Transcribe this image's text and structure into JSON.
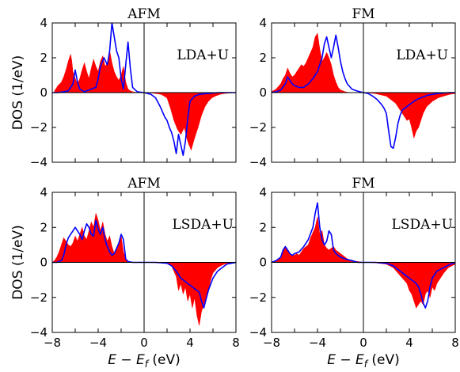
{
  "chart_data": [
    {
      "type": "area",
      "title": "AFM",
      "annotation": "LDA+U",
      "ylabel": "DOS (1/eV)",
      "xlabel": "",
      "xlim": [
        -8,
        8
      ],
      "ylim": [
        -4,
        4
      ],
      "xticks": [],
      "yticks": [
        -4,
        -2,
        0,
        2,
        4
      ],
      "ytick_labels": [
        "−4",
        "−2",
        "0",
        "2",
        "4"
      ],
      "series": [
        {
          "kind": "filled",
          "color": "#ff0000",
          "x": [
            -7.8,
            -7.5,
            -7.2,
            -7.0,
            -6.8,
            -6.6,
            -6.4,
            -6.3,
            -6.2,
            -6.0,
            -5.8,
            -5.6,
            -5.4,
            -5.2,
            -5.0,
            -4.8,
            -4.6,
            -4.4,
            -4.2,
            -4.0,
            -3.8,
            -3.6,
            -3.4,
            -3.2,
            -3.0,
            -2.8,
            -2.6,
            -2.4,
            -2.2,
            -2.0,
            -1.8,
            -1.6,
            -1.4,
            -1.2,
            -1.0,
            -0.6,
            0.0,
            0.6,
            1.0,
            1.5,
            2.0,
            2.3,
            2.6,
            2.9,
            3.2,
            3.5,
            3.8,
            4.1,
            4.4,
            4.7,
            5.0,
            5.3,
            5.6,
            5.9,
            6.2,
            6.6,
            7.0,
            7.5,
            7.8
          ],
          "y": [
            0.1,
            0.4,
            0.6,
            0.9,
            1.3,
            1.8,
            2.2,
            1.8,
            1.2,
            0.8,
            0.5,
            0.8,
            1.3,
            1.7,
            1.2,
            0.8,
            1.4,
            1.9,
            1.5,
            1.2,
            1.8,
            2.1,
            1.5,
            1.7,
            2.4,
            1.7,
            1.2,
            0.9,
            0.7,
            1.0,
            1.5,
            0.6,
            0.2,
            0.1,
            0.05,
            0.0,
            0.0,
            -0.02,
            -0.05,
            -0.1,
            -0.3,
            -0.9,
            -1.6,
            -2.1,
            -2.4,
            -2.0,
            -2.8,
            -3.3,
            -2.6,
            -2.0,
            -1.3,
            -0.8,
            -0.5,
            -0.3,
            -0.2,
            -0.1,
            -0.05,
            -0.02,
            0.0
          ]
        },
        {
          "kind": "line",
          "color": "#0000ff",
          "x": [
            -8.0,
            -7.5,
            -7.0,
            -6.6,
            -6.2,
            -6.0,
            -5.8,
            -5.6,
            -5.2,
            -5.0,
            -4.8,
            -4.6,
            -4.2,
            -4.0,
            -3.8,
            -3.5,
            -3.2,
            -3.0,
            -2.8,
            -2.6,
            -2.4,
            -2.2,
            -2.0,
            -1.8,
            -1.6,
            -1.4,
            -1.2,
            -1.0,
            -0.6,
            0.0,
            0.6,
            1.0,
            1.4,
            1.8,
            2.0,
            2.2,
            2.4,
            2.6,
            2.8,
            3.0,
            3.2,
            3.4,
            3.6,
            3.8,
            4.0,
            4.4,
            4.8,
            5.5,
            6.5,
            7.5,
            8.0
          ],
          "y": [
            0.0,
            0.0,
            0.05,
            0.1,
            0.5,
            1.3,
            0.6,
            0.2,
            0.05,
            0.1,
            0.15,
            0.2,
            0.3,
            0.8,
            1.5,
            2.0,
            1.6,
            2.4,
            4.0,
            3.2,
            2.4,
            2.0,
            0.8,
            0.2,
            1.6,
            2.9,
            1.4,
            0.3,
            0.05,
            0.0,
            -0.1,
            -0.3,
            -0.8,
            -1.4,
            -1.6,
            -2.0,
            -2.3,
            -2.8,
            -3.5,
            -2.4,
            -3.0,
            -3.6,
            -2.8,
            -1.5,
            -0.5,
            -0.2,
            -0.1,
            -0.05,
            0.0,
            0.0,
            0.0
          ]
        }
      ]
    },
    {
      "type": "area",
      "title": "FM",
      "annotation": "LDA+U",
      "ylabel": "",
      "xlabel": "",
      "xlim": [
        -8,
        8
      ],
      "ylim": [
        -4,
        4
      ],
      "xticks": [],
      "yticks": [
        -4,
        -2,
        0,
        2,
        4
      ],
      "ytick_labels": [
        "−4",
        "−2",
        "0",
        "2",
        "4"
      ],
      "series": [
        {
          "kind": "filled",
          "color": "#ff0000",
          "x": [
            -8.0,
            -7.6,
            -7.2,
            -7.0,
            -6.8,
            -6.6,
            -6.4,
            -6.2,
            -6.0,
            -5.8,
            -5.6,
            -5.4,
            -5.2,
            -5.0,
            -4.8,
            -4.6,
            -4.4,
            -4.2,
            -4.0,
            -3.8,
            -3.6,
            -3.4,
            -3.2,
            -3.0,
            -2.8,
            -2.6,
            -2.4,
            -2.2,
            -2.0,
            -1.8,
            -1.6,
            -1.4,
            -1.0,
            -0.6,
            0.0,
            1.0,
            2.0,
            2.4,
            2.8,
            3.0,
            3.2,
            3.4,
            3.6,
            3.8,
            4.0,
            4.2,
            4.4,
            4.6,
            4.8,
            5.0,
            5.2,
            5.5,
            6.0,
            6.5,
            7.0,
            7.5,
            8.0
          ],
          "y": [
            0.05,
            0.2,
            0.5,
            0.8,
            1.0,
            1.4,
            1.1,
            0.9,
            1.0,
            1.2,
            1.4,
            1.6,
            1.5,
            1.7,
            2.0,
            2.3,
            2.6,
            3.2,
            3.4,
            2.5,
            1.8,
            2.0,
            2.3,
            2.0,
            1.6,
            1.0,
            0.6,
            0.3,
            0.15,
            0.1,
            0.05,
            0.02,
            0.0,
            0.0,
            0.0,
            -0.05,
            -0.2,
            -0.4,
            -0.6,
            -0.8,
            -1.0,
            -1.2,
            -1.4,
            -1.6,
            -1.5,
            -2.0,
            -2.6,
            -2.2,
            -2.0,
            -1.6,
            -1.2,
            -0.8,
            -0.5,
            -0.3,
            -0.2,
            -0.1,
            -0.05
          ]
        },
        {
          "kind": "line",
          "color": "#0000ff",
          "x": [
            -8.0,
            -7.6,
            -7.2,
            -6.8,
            -6.6,
            -6.4,
            -6.2,
            -6.0,
            -5.6,
            -5.2,
            -4.8,
            -4.4,
            -4.0,
            -3.8,
            -3.6,
            -3.4,
            -3.2,
            -3.0,
            -2.8,
            -2.6,
            -2.4,
            -2.2,
            -2.0,
            -1.8,
            -1.6,
            -1.4,
            -1.0,
            -0.6,
            0.0,
            0.4,
            0.8,
            1.2,
            1.6,
            1.8,
            2.0,
            2.2,
            2.4,
            2.6,
            2.8,
            3.0,
            3.2,
            3.4,
            3.6,
            3.8,
            4.0,
            4.4,
            4.8,
            5.2,
            5.6,
            6.0,
            6.5,
            7.0,
            7.5,
            8.0
          ],
          "y": [
            0.0,
            0.05,
            0.15,
            0.5,
            0.9,
            0.7,
            0.5,
            0.4,
            0.3,
            0.3,
            0.5,
            0.8,
            1.2,
            1.6,
            2.0,
            2.8,
            3.2,
            2.6,
            2.0,
            2.6,
            3.3,
            2.6,
            1.8,
            1.2,
            0.8,
            0.5,
            0.2,
            0.1,
            0.0,
            -0.05,
            -0.2,
            -0.4,
            -0.7,
            -0.9,
            -1.2,
            -2.2,
            -3.1,
            -3.2,
            -2.6,
            -1.8,
            -1.3,
            -1.0,
            -0.9,
            -0.8,
            -0.7,
            -0.5,
            -0.35,
            -0.25,
            -0.15,
            -0.1,
            -0.05,
            -0.02,
            0.0,
            0.0
          ]
        }
      ]
    },
    {
      "type": "area",
      "title": "AFM",
      "annotation": "LSDA+U",
      "ylabel": "DOS (1/eV)",
      "xlabel": "E − E_f (eV)",
      "xlim": [
        -8,
        8
      ],
      "ylim": [
        -4,
        4
      ],
      "xticks": [
        -8,
        -4,
        0,
        4,
        8
      ],
      "xtick_labels": [
        "−8",
        "−4",
        "0",
        "4",
        "8"
      ],
      "yticks": [
        -4,
        -2,
        0,
        2,
        4
      ],
      "ytick_labels": [
        "−4",
        "−2",
        "0",
        "2",
        "4"
      ],
      "series": [
        {
          "kind": "filled",
          "color": "#ff0000",
          "x": [
            -8.0,
            -7.8,
            -7.6,
            -7.4,
            -7.2,
            -7.0,
            -6.8,
            -6.6,
            -6.4,
            -6.2,
            -6.0,
            -5.8,
            -5.6,
            -5.4,
            -5.2,
            -5.0,
            -4.8,
            -4.6,
            -4.4,
            -4.2,
            -4.0,
            -3.8,
            -3.6,
            -3.4,
            -3.2,
            -3.0,
            -2.8,
            -2.6,
            -2.4,
            -2.2,
            -2.0,
            -1.8,
            -1.6,
            -1.4,
            -1.0,
            -0.4,
            0.0,
            1.0,
            2.0,
            2.4,
            2.8,
            3.0,
            3.2,
            3.4,
            3.6,
            3.8,
            4.0,
            4.2,
            4.4,
            4.6,
            4.8,
            5.0,
            5.2,
            5.4,
            5.6,
            5.8,
            6.0,
            6.4,
            6.8,
            7.2,
            8.0
          ],
          "y": [
            0.0,
            0.1,
            0.3,
            0.6,
            1.0,
            1.4,
            1.2,
            1.0,
            0.9,
            1.1,
            1.5,
            1.2,
            1.6,
            2.0,
            1.5,
            1.3,
            1.8,
            2.3,
            2.0,
            2.8,
            2.4,
            1.8,
            2.3,
            1.6,
            1.2,
            1.5,
            0.9,
            0.5,
            0.7,
            1.0,
            1.5,
            0.6,
            0.2,
            0.05,
            0.0,
            0.0,
            0.0,
            -0.02,
            -0.05,
            -0.2,
            -0.8,
            -1.6,
            -1.2,
            -1.8,
            -1.4,
            -2.2,
            -1.8,
            -2.6,
            -2.0,
            -3.0,
            -3.6,
            -2.8,
            -2.4,
            -2.0,
            -1.6,
            -1.0,
            -0.6,
            -0.3,
            -0.15,
            -0.05,
            0.0
          ]
        },
        {
          "kind": "line",
          "color": "#0000ff",
          "x": [
            -8.0,
            -7.6,
            -7.2,
            -7.0,
            -6.8,
            -6.6,
            -6.4,
            -6.2,
            -6.0,
            -5.8,
            -5.6,
            -5.4,
            -5.2,
            -5.0,
            -4.8,
            -4.6,
            -4.4,
            -4.2,
            -4.0,
            -3.8,
            -3.6,
            -3.4,
            -3.2,
            -3.0,
            -2.8,
            -2.6,
            -2.4,
            -2.2,
            -2.0,
            -1.8,
            -1.6,
            -1.4,
            -1.0,
            -0.4,
            0.0,
            1.0,
            2.0,
            2.4,
            2.8,
            3.0,
            3.2,
            3.4,
            3.6,
            3.8,
            4.0,
            4.4,
            4.8,
            5.0,
            5.2,
            5.6,
            6.0,
            6.4,
            6.8,
            7.2,
            8.0
          ],
          "y": [
            0.0,
            0.0,
            0.1,
            0.4,
            1.0,
            1.4,
            1.6,
            1.8,
            2.0,
            1.8,
            1.6,
            1.3,
            1.8,
            2.2,
            2.0,
            1.6,
            1.5,
            2.4,
            1.9,
            1.6,
            2.0,
            1.3,
            0.9,
            0.6,
            0.4,
            0.5,
            0.8,
            1.1,
            1.6,
            1.3,
            0.2,
            0.05,
            0.0,
            0.0,
            0.0,
            0.0,
            -0.05,
            -0.2,
            -0.5,
            -0.7,
            -0.9,
            -1.0,
            -1.1,
            -1.2,
            -1.3,
            -1.5,
            -1.7,
            -2.2,
            -2.6,
            -1.6,
            -0.9,
            -0.5,
            -0.3,
            -0.1,
            0.0
          ]
        }
      ]
    },
    {
      "type": "area",
      "title": "FM",
      "annotation": "LSDA+U",
      "ylabel": "",
      "xlabel": "E − E_f (eV)",
      "xlim": [
        -8,
        8
      ],
      "ylim": [
        -4,
        4
      ],
      "xticks": [
        -8,
        -4,
        0,
        4,
        8
      ],
      "xtick_labels": [
        "−8",
        "−4",
        "0",
        "4",
        "8"
      ],
      "yticks": [
        -4,
        -2,
        0,
        2,
        4
      ],
      "ytick_labels": [
        "−4",
        "−2",
        "0",
        "2",
        "4"
      ],
      "series": [
        {
          "kind": "filled",
          "color": "#ff0000",
          "x": [
            -8.0,
            -7.6,
            -7.2,
            -7.0,
            -6.8,
            -6.6,
            -6.4,
            -6.2,
            -6.0,
            -5.8,
            -5.6,
            -5.4,
            -5.2,
            -5.0,
            -4.8,
            -4.6,
            -4.4,
            -4.2,
            -4.0,
            -3.8,
            -3.6,
            -3.4,
            -3.2,
            -3.0,
            -2.8,
            -2.6,
            -2.4,
            -2.2,
            -2.0,
            -1.8,
            -1.6,
            -1.4,
            -1.0,
            -0.5,
            0.0,
            1.0,
            2.0,
            2.6,
            3.0,
            3.4,
            3.8,
            4.0,
            4.2,
            4.4,
            4.6,
            4.8,
            5.0,
            5.2,
            5.4,
            5.6,
            5.8,
            6.0,
            6.2,
            6.4,
            6.6,
            6.8,
            7.0,
            7.4,
            8.0
          ],
          "y": [
            0.0,
            0.1,
            0.3,
            0.6,
            0.9,
            0.7,
            0.5,
            0.4,
            0.4,
            0.5,
            0.4,
            0.6,
            0.8,
            0.9,
            1.0,
            1.4,
            1.7,
            2.0,
            2.6,
            1.6,
            1.8,
            1.0,
            0.8,
            0.7,
            0.8,
            0.9,
            0.7,
            0.6,
            0.5,
            0.4,
            0.3,
            0.2,
            0.1,
            0.05,
            0.0,
            -0.02,
            -0.1,
            -0.3,
            -0.6,
            -0.9,
            -1.2,
            -1.6,
            -1.8,
            -2.2,
            -2.6,
            -2.4,
            -2.2,
            -2.4,
            -1.8,
            -1.6,
            -2.0,
            -1.4,
            -1.6,
            -1.2,
            -1.0,
            -0.8,
            -0.6,
            -0.3,
            -0.1
          ]
        },
        {
          "kind": "line",
          "color": "#0000ff",
          "x": [
            -8.0,
            -7.6,
            -7.2,
            -7.0,
            -6.8,
            -6.6,
            -6.4,
            -6.2,
            -6.0,
            -5.6,
            -5.2,
            -4.8,
            -4.4,
            -4.2,
            -4.0,
            -3.8,
            -3.6,
            -3.4,
            -3.2,
            -3.0,
            -2.8,
            -2.6,
            -2.4,
            -2.2,
            -2.0,
            -1.6,
            -1.0,
            -0.5,
            0.0,
            1.0,
            2.0,
            2.6,
            3.0,
            3.4,
            3.8,
            4.2,
            4.6,
            4.8,
            5.0,
            5.2,
            5.4,
            5.6,
            5.8,
            6.0,
            6.4,
            7.0,
            7.6,
            8.0
          ],
          "y": [
            0.0,
            0.1,
            0.3,
            0.7,
            0.9,
            0.7,
            0.5,
            0.4,
            0.5,
            0.6,
            0.9,
            1.3,
            2.0,
            2.8,
            3.4,
            2.0,
            1.3,
            1.0,
            1.2,
            1.8,
            1.6,
            0.7,
            0.5,
            0.4,
            0.3,
            0.2,
            0.1,
            0.0,
            0.0,
            0.0,
            -0.05,
            -0.2,
            -0.4,
            -0.6,
            -0.8,
            -1.0,
            -1.2,
            -1.4,
            -1.8,
            -2.3,
            -2.6,
            -2.2,
            -1.4,
            -0.9,
            -0.5,
            -0.3,
            -0.1,
            0.0
          ]
        }
      ]
    }
  ]
}
